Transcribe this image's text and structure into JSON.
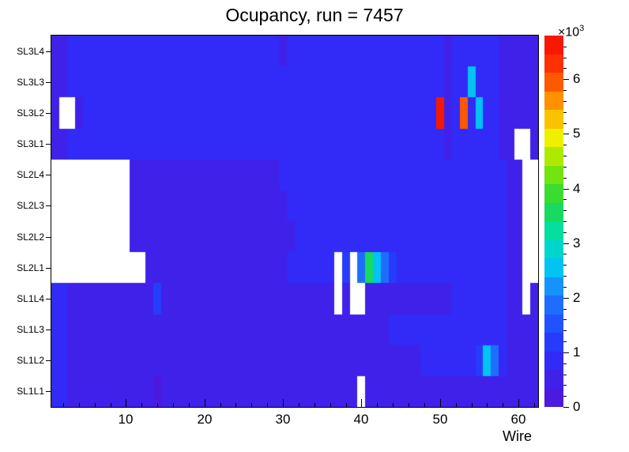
{
  "title": "Ocupancy, run = 7457",
  "x_axis": {
    "label": "Wire",
    "major_ticks": [
      10,
      20,
      30,
      40,
      50,
      60
    ],
    "minor_tick_step": 2,
    "min": 0.5,
    "max": 62.5
  },
  "y_axis": {
    "labels_top_to_bottom": [
      "SL3L4",
      "SL3L3",
      "SL3L2",
      "SL3L1",
      "SL2L4",
      "SL2L3",
      "SL2L2",
      "SL2L1",
      "SL1L4",
      "SL1L3",
      "SL1L2",
      "SL1L1"
    ]
  },
  "colorbar": {
    "ticks": [
      0,
      1,
      2,
      3,
      4,
      5,
      6
    ],
    "minor_tick_step": 0.2,
    "zmin": 0,
    "zmax": 6800,
    "exponent_label_base": "×10",
    "exponent_label_exp": "3",
    "n_contours": 20
  },
  "palette": {
    "stops": [
      [
        0.0,
        "#5316d8"
      ],
      [
        0.12,
        "#3328f5"
      ],
      [
        0.2,
        "#2244ff"
      ],
      [
        0.3,
        "#1e7bff"
      ],
      [
        0.38,
        "#00c8f0"
      ],
      [
        0.46,
        "#00e0b0"
      ],
      [
        0.55,
        "#20d840"
      ],
      [
        0.65,
        "#8ee800"
      ],
      [
        0.73,
        "#f5ef00"
      ],
      [
        0.82,
        "#ff9800"
      ],
      [
        0.9,
        "#ff3c00"
      ],
      [
        1.0,
        "#f50c00"
      ]
    ],
    "empty_bin_color": "#ffffff",
    "frame_color": "#000000",
    "background_color": "#ffffff"
  },
  "chart_data": {
    "type": "heatmap",
    "title": "Ocupancy, run = 7457",
    "xlabel": "Wire",
    "x_range": [
      0.5,
      62.5
    ],
    "n_wires": 62,
    "rows_top_to_bottom": [
      "SL3L4",
      "SL3L3",
      "SL3L2",
      "SL3L1",
      "SL2L4",
      "SL2L3",
      "SL2L2",
      "SL2L1",
      "SL1L4",
      "SL1L3",
      "SL1L2",
      "SL1L1"
    ],
    "zmax": 6800,
    "values_encoding": "run-length pairs [bin_count, occupancy_counts]; null = empty (white) bin; wires 1..62 left to right",
    "values_rle": {
      "SL3L4": [
        [
          2,
          400
        ],
        [
          27,
          900
        ],
        [
          1,
          400
        ],
        [
          20,
          900
        ],
        [
          1,
          400
        ],
        [
          6,
          900
        ],
        [
          5,
          400
        ]
      ],
      "SL3L3": [
        [
          2,
          400
        ],
        [
          48,
          900
        ],
        [
          1,
          400
        ],
        [
          2,
          900
        ],
        [
          1,
          2700
        ],
        [
          3,
          900
        ],
        [
          5,
          400
        ]
      ],
      "SL3L2": [
        [
          1,
          400
        ],
        [
          2,
          null
        ],
        [
          1,
          400
        ],
        [
          45,
          900
        ],
        [
          1,
          6500
        ],
        [
          1,
          400
        ],
        [
          1,
          900
        ],
        [
          1,
          6000
        ],
        [
          1,
          900
        ],
        [
          1,
          2500
        ],
        [
          2,
          900
        ],
        [
          5,
          400
        ]
      ],
      "SL3L1": [
        [
          2,
          400
        ],
        [
          48,
          900
        ],
        [
          1,
          400
        ],
        [
          6,
          900
        ],
        [
          2,
          400
        ],
        [
          2,
          null
        ],
        [
          1,
          400
        ]
      ],
      "SL2L4": [
        [
          10,
          null
        ],
        [
          19,
          400
        ],
        [
          29,
          900
        ],
        [
          2,
          400
        ],
        [
          2,
          null
        ]
      ],
      "SL2L3": [
        [
          10,
          null
        ],
        [
          20,
          400
        ],
        [
          28,
          900
        ],
        [
          2,
          400
        ],
        [
          2,
          null
        ]
      ],
      "SL2L2": [
        [
          10,
          null
        ],
        [
          21,
          400
        ],
        [
          27,
          900
        ],
        [
          2,
          400
        ],
        [
          2,
          null
        ]
      ],
      "SL2L1": [
        [
          12,
          null
        ],
        [
          18,
          400
        ],
        [
          6,
          900
        ],
        [
          1,
          null
        ],
        [
          1,
          1300
        ],
        [
          1,
          null
        ],
        [
          1,
          1900
        ],
        [
          1,
          3700
        ],
        [
          1,
          2600
        ],
        [
          1,
          1900
        ],
        [
          1,
          1300
        ],
        [
          14,
          900
        ],
        [
          2,
          400
        ],
        [
          2,
          null
        ]
      ],
      "SL1L4": [
        [
          2,
          900
        ],
        [
          11,
          400
        ],
        [
          1,
          1100
        ],
        [
          22,
          400
        ],
        [
          1,
          null
        ],
        [
          1,
          400
        ],
        [
          2,
          null
        ],
        [
          11,
          400
        ],
        [
          7,
          900
        ],
        [
          2,
          400
        ],
        [
          1,
          null
        ],
        [
          1,
          400
        ]
      ],
      "SL1L3": [
        [
          2,
          900
        ],
        [
          41,
          400
        ],
        [
          15,
          900
        ],
        [
          4,
          400
        ]
      ],
      "SL1L2": [
        [
          2,
          900
        ],
        [
          45,
          400
        ],
        [
          7,
          900
        ],
        [
          1,
          1300
        ],
        [
          1,
          2500
        ],
        [
          1,
          1900
        ],
        [
          1,
          900
        ],
        [
          4,
          400
        ]
      ],
      "SL1L1": [
        [
          2,
          900
        ],
        [
          11,
          400
        ],
        [
          1,
          250
        ],
        [
          25,
          400
        ],
        [
          1,
          null
        ],
        [
          22,
          400
        ]
      ]
    }
  }
}
